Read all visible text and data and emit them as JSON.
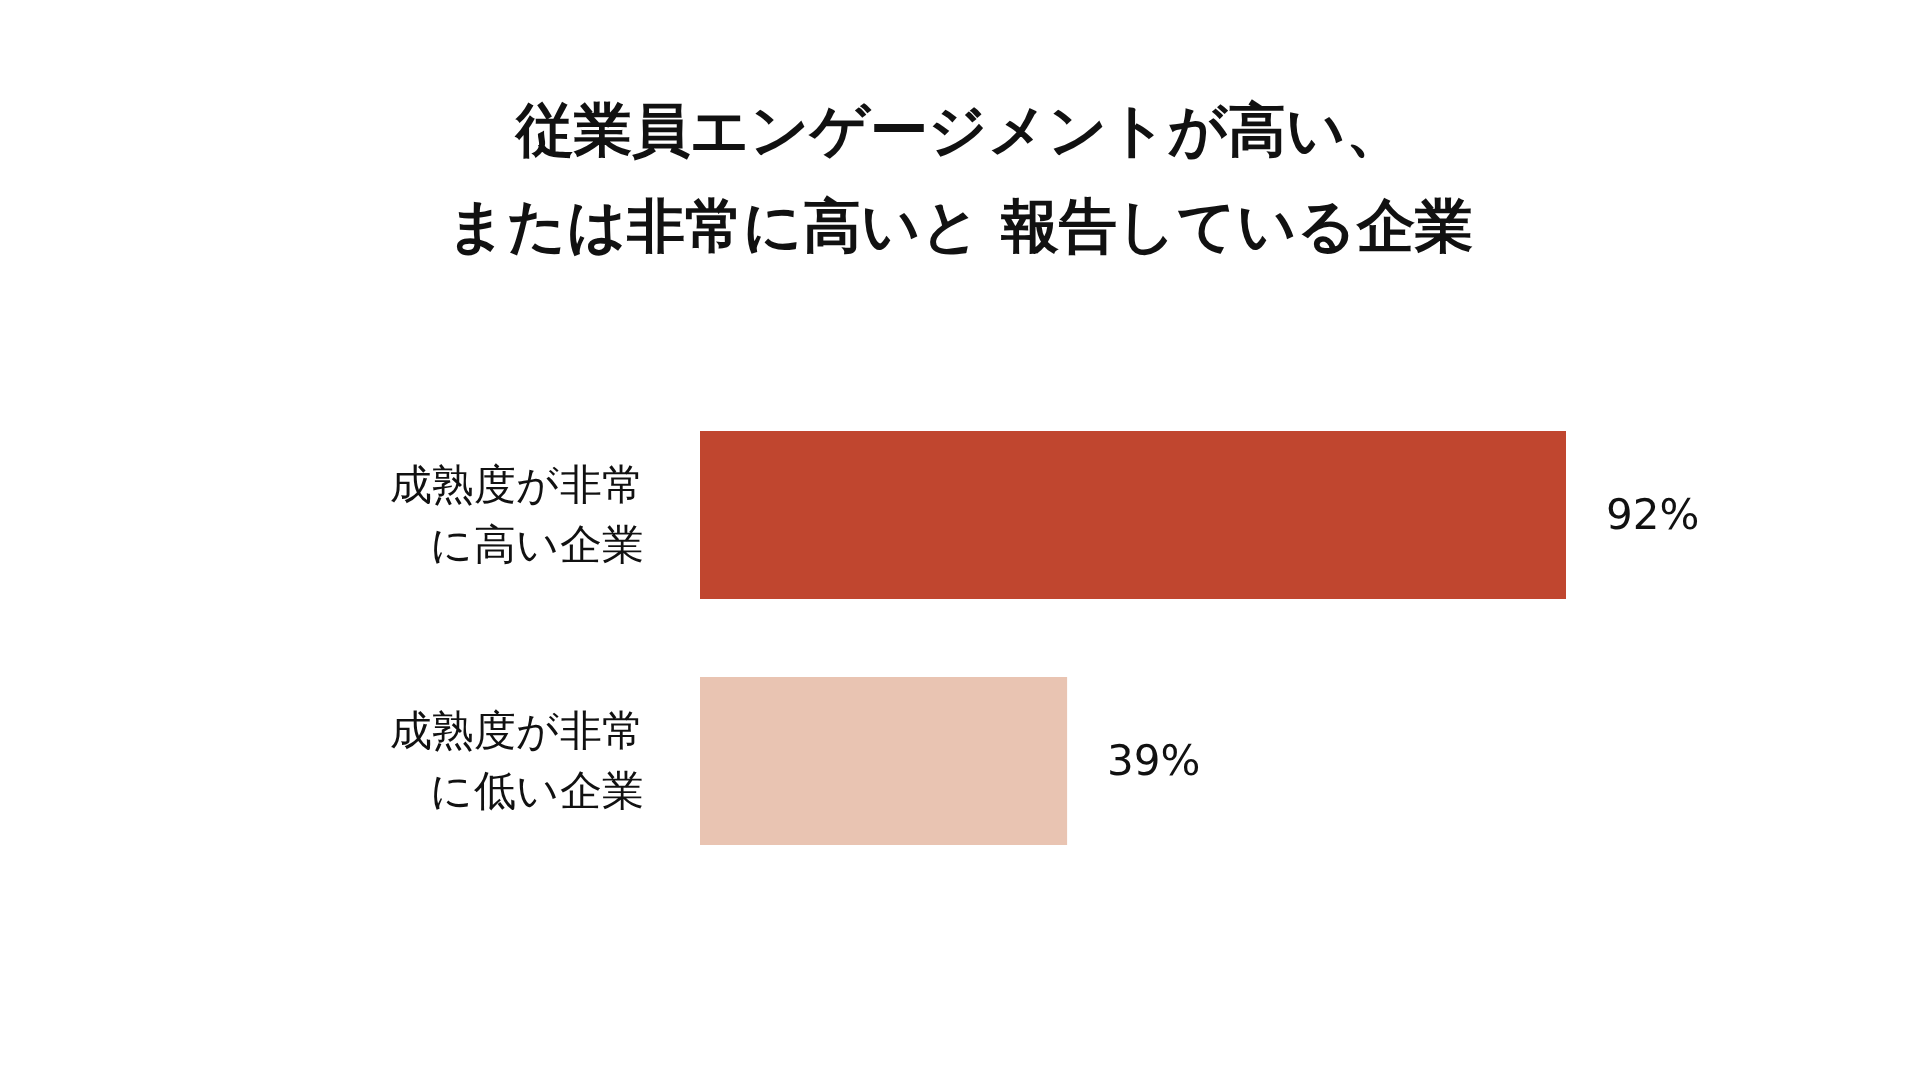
{
  "chart_data": {
    "type": "bar",
    "orientation": "horizontal",
    "title": "従業員エンゲージメントが高い、または非常に高いと 報告している企業",
    "categories": [
      "成熟度が非常に高い企業",
      "成熟度が非常に低い企業"
    ],
    "values": [
      92,
      39
    ],
    "colors": [
      "#c0462f",
      "#e9c4b2"
    ],
    "value_labels": [
      "92%",
      "39%"
    ],
    "grid": false
  }
}
